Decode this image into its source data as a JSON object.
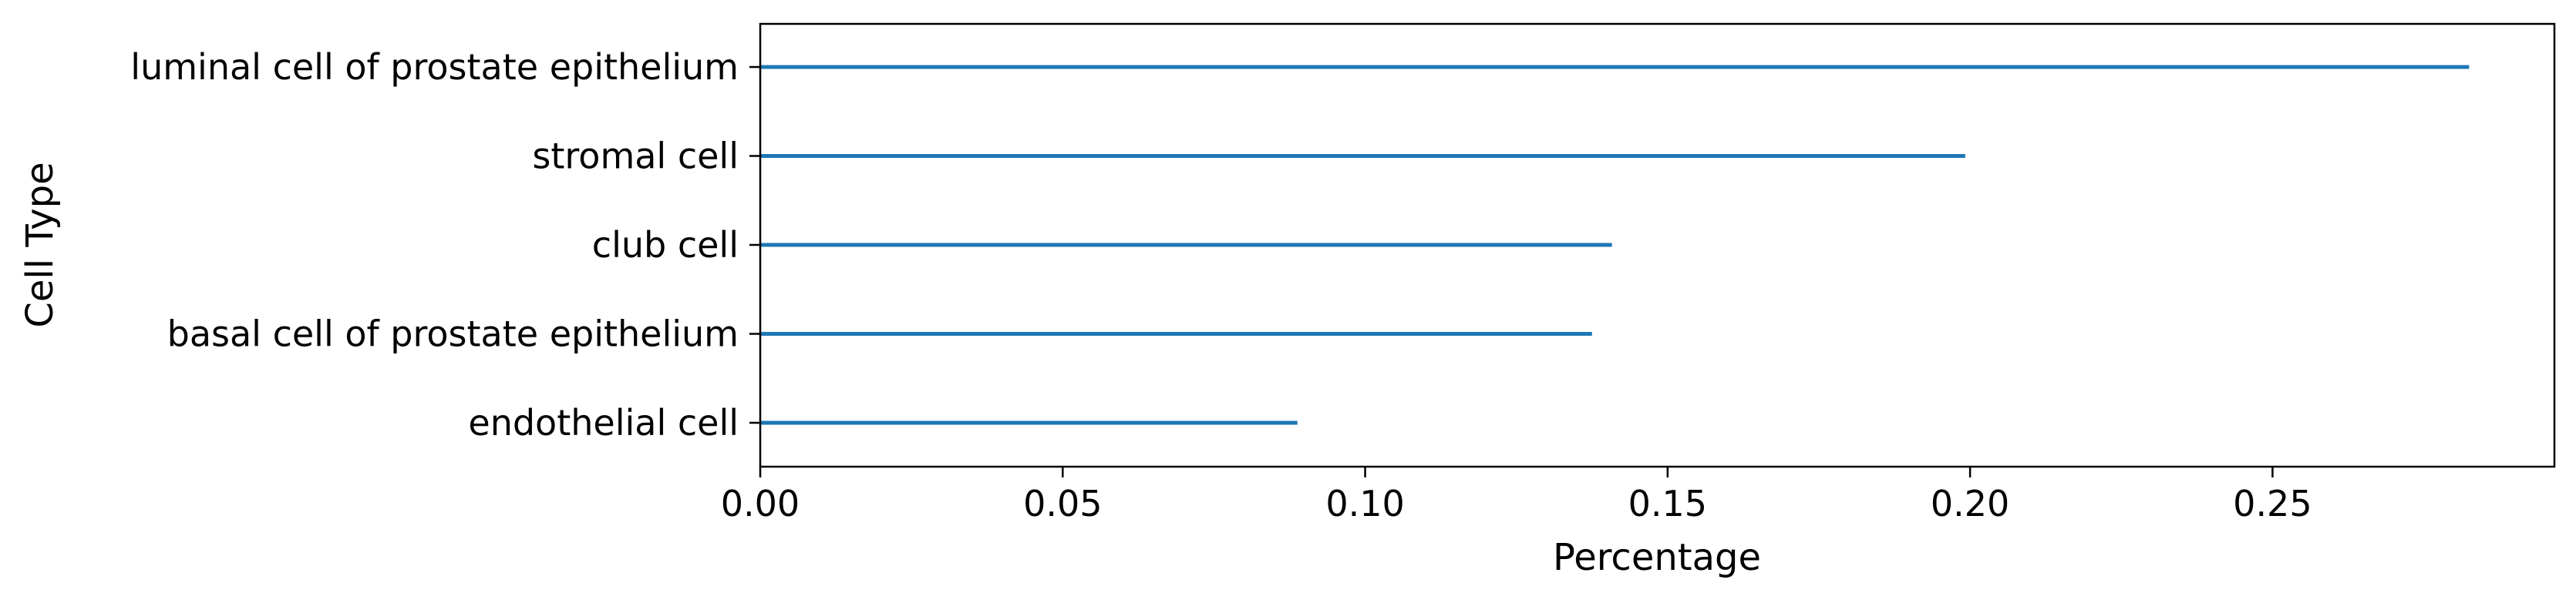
{
  "chart_data": {
    "type": "bar",
    "orientation": "horizontal",
    "categories": [
      "luminal cell of prostate epithelium",
      "stromal cell",
      "club cell",
      "basal cell of prostate epithelium",
      "endothelial cell"
    ],
    "values": [
      0.2825,
      0.1992,
      0.1408,
      0.1375,
      0.0888
    ],
    "title": "",
    "xlabel": "Percentage",
    "ylabel": "Cell Type",
    "xlim": [
      0.0,
      0.2966
    ],
    "xticks": [
      0.0,
      0.05,
      0.1,
      0.15,
      0.2,
      0.25
    ],
    "xtick_labels": [
      "0.00",
      "0.05",
      "0.10",
      "0.15",
      "0.20",
      "0.25"
    ],
    "grid": false,
    "legend": "none",
    "bar_color": "#1f77b4"
  }
}
